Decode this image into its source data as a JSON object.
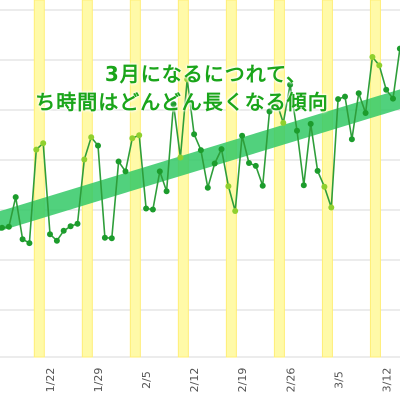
{
  "annotation": {
    "line1": "3月になるにつれて、",
    "line2": "ち時間はどんどん長くなる傾向"
  },
  "colors": {
    "weekend_band": "#fffaa8",
    "weekend_band_edge": "#ffee77",
    "trend_band": "#33c966",
    "line": "#2e9e3a",
    "marker_weekday": "#1c9c2c",
    "marker_weekend": "#8fd02e",
    "grid": "#d9d9d9",
    "annotation_text": "#1aa51a"
  },
  "chart_data": {
    "type": "line",
    "title": "",
    "xlabel": "",
    "ylabel": "",
    "x_start": "1/16",
    "x_end": "3/15",
    "x_ticks": [
      "1/22",
      "1/29",
      "2/5",
      "2/12",
      "2/19",
      "2/26",
      "3/5",
      "3/12"
    ],
    "weekend_highlights": [
      "1/21",
      "1/28",
      "2/4",
      "2/11",
      "2/18",
      "2/25",
      "3/4",
      "3/11"
    ],
    "trend": {
      "from": [
        "1/16",
        27.2
      ],
      "to": [
        "3/15",
        52.8
      ]
    },
    "grid": true,
    "y_tick_labels_visible": false,
    "series": [
      {
        "values": [
          [
            "1/16",
            26.1
          ],
          [
            "1/17",
            26.3
          ],
          [
            "1/18",
            32.3
          ],
          [
            "1/19",
            23.8
          ],
          [
            "1/20",
            23.0
          ],
          [
            "1/21",
            41.9
          ],
          [
            "1/22",
            43.2
          ],
          [
            "1/23",
            24.8
          ],
          [
            "1/24",
            23.5
          ],
          [
            "1/25",
            25.5
          ],
          [
            "1/26",
            26.4
          ],
          [
            "1/27",
            26.9
          ],
          [
            "1/28",
            39.9
          ],
          [
            "1/29",
            44.4
          ],
          [
            "1/30",
            42.7
          ],
          [
            "1/31",
            24.1
          ],
          [
            "2/1",
            24.0
          ],
          [
            "2/2",
            39.5
          ],
          [
            "2/3",
            37.5
          ],
          [
            "2/4",
            44.2
          ],
          [
            "2/5",
            44.8
          ],
          [
            "2/6",
            30.0
          ],
          [
            "2/7",
            29.8
          ],
          [
            "2/8",
            37.5
          ],
          [
            "2/9",
            33.5
          ],
          [
            "2/10",
            51.1
          ],
          [
            "2/11",
            40.3
          ],
          [
            "2/12",
            56.1
          ],
          [
            "2/13",
            45.0
          ],
          [
            "2/14",
            41.8
          ],
          [
            "2/15",
            34.2
          ],
          [
            "2/16",
            39.1
          ],
          [
            "2/17",
            42.0
          ],
          [
            "2/18",
            34.5
          ],
          [
            "2/19",
            29.5
          ],
          [
            "2/20",
            44.7
          ],
          [
            "2/21",
            39.2
          ],
          [
            "2/22",
            38.6
          ],
          [
            "2/23",
            34.6
          ],
          [
            "2/24",
            49.6
          ],
          [
            "2/25",
            51.6
          ],
          [
            "2/26",
            47.3
          ],
          [
            "2/27",
            55.0
          ],
          [
            "2/28",
            45.7
          ],
          [
            "3/1",
            34.7
          ],
          [
            "3/2",
            47.1
          ],
          [
            "3/3",
            37.6
          ],
          [
            "3/4",
            34.4
          ],
          [
            "3/5",
            30.2
          ],
          [
            "3/6",
            52.1
          ],
          [
            "3/7",
            52.6
          ],
          [
            "3/8",
            44.0
          ],
          [
            "3/9",
            53.3
          ],
          [
            "3/10",
            49.3
          ],
          [
            "3/11",
            60.6
          ],
          [
            "3/12",
            58.9
          ],
          [
            "3/13",
            54.0
          ],
          [
            "3/14",
            52.2
          ],
          [
            "3/15",
            62.3
          ]
        ]
      }
    ]
  }
}
